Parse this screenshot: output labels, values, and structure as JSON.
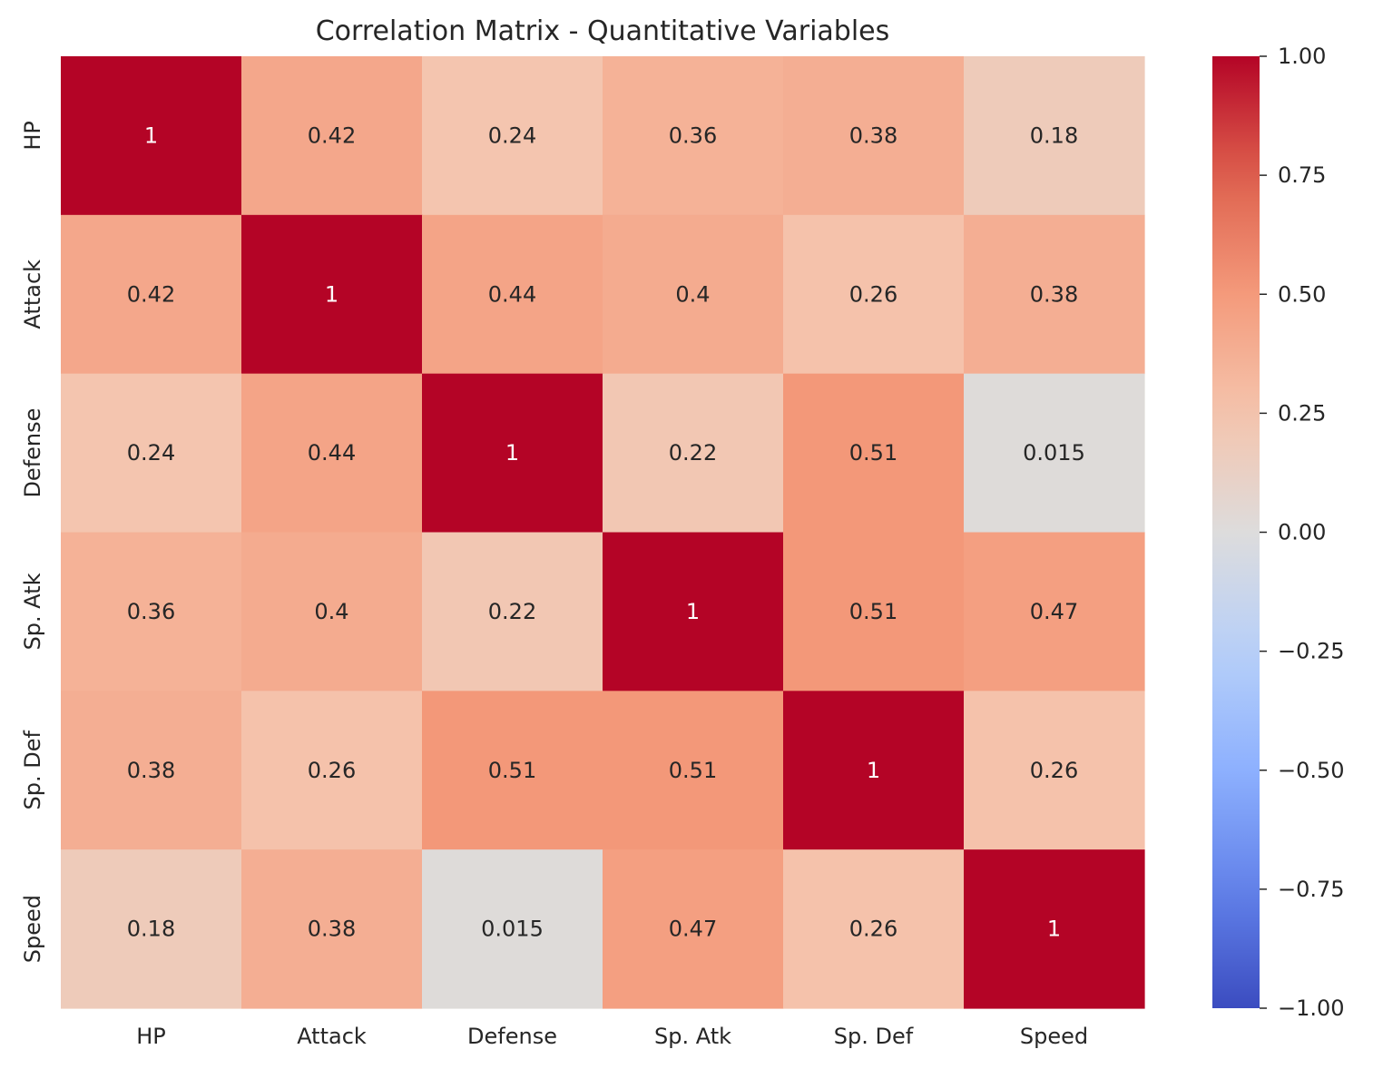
{
  "chart_data": {
    "type": "heatmap",
    "title": "Correlation Matrix - Quantitative Variables",
    "xlabel": "",
    "ylabel": "",
    "x_categories": [
      "HP",
      "Attack",
      "Defense",
      "Sp. Atk",
      "Sp. Def",
      "Speed"
    ],
    "y_categories": [
      "HP",
      "Attack",
      "Defense",
      "Sp. Atk",
      "Sp. Def",
      "Speed"
    ],
    "values": [
      [
        1,
        0.42,
        0.24,
        0.36,
        0.38,
        0.18
      ],
      [
        0.42,
        1,
        0.44,
        0.4,
        0.26,
        0.38
      ],
      [
        0.24,
        0.44,
        1,
        0.22,
        0.51,
        0.015
      ],
      [
        0.36,
        0.4,
        0.22,
        1,
        0.51,
        0.47
      ],
      [
        0.38,
        0.26,
        0.51,
        0.51,
        1,
        0.26
      ],
      [
        0.18,
        0.38,
        0.015,
        0.47,
        0.26,
        1
      ]
    ],
    "annotations": [
      [
        "1",
        "0.42",
        "0.24",
        "0.36",
        "0.38",
        "0.18"
      ],
      [
        "0.42",
        "1",
        "0.44",
        "0.4",
        "0.26",
        "0.38"
      ],
      [
        "0.24",
        "0.44",
        "1",
        "0.22",
        "0.51",
        "0.015"
      ],
      [
        "0.36",
        "0.4",
        "0.22",
        "1",
        "0.51",
        "0.47"
      ],
      [
        "0.38",
        "0.26",
        "0.51",
        "0.51",
        "1",
        "0.26"
      ],
      [
        "0.18",
        "0.38",
        "0.015",
        "0.47",
        "0.26",
        "1"
      ]
    ],
    "colormap": "coolwarm",
    "vmin": -1,
    "vmax": 1,
    "colorbar_ticks": [
      1,
      0.75,
      0.5,
      0.25,
      0,
      -0.25,
      -0.5,
      -0.75,
      -1
    ],
    "colorbar_tick_labels": [
      "1.00",
      "0.75",
      "0.50",
      "0.25",
      "0.00",
      "−0.25",
      "−0.50",
      "−0.75",
      "−1.00"
    ],
    "colors": {
      "low": "#3b4cc0",
      "mid": "#dddcdc",
      "high": "#b40426",
      "text_dark": "#262626",
      "text_light": "#ffffff"
    },
    "grid": false,
    "legend": "colorbar-right"
  }
}
